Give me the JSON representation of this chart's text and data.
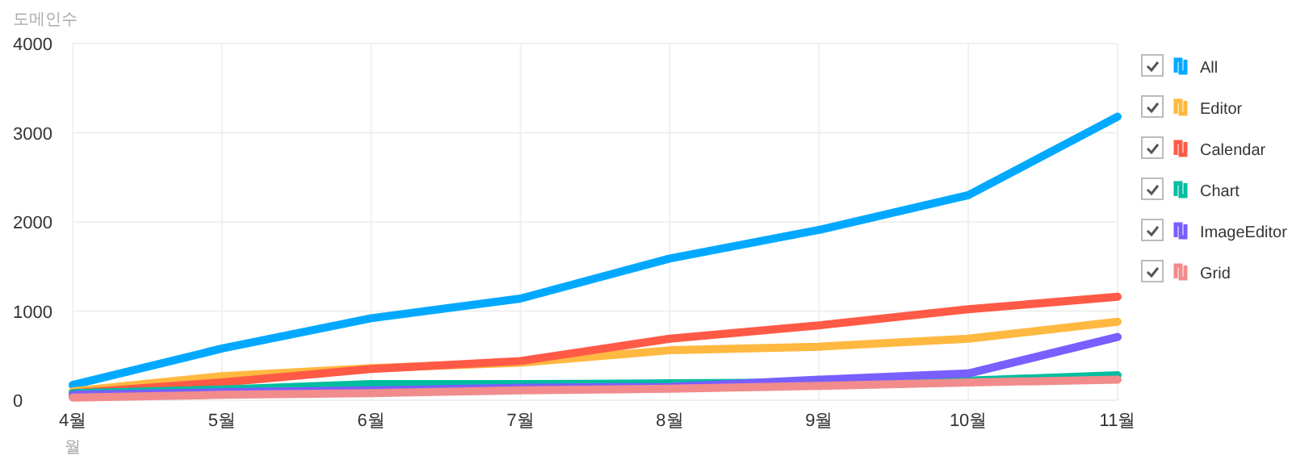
{
  "chart_data": {
    "type": "line",
    "ylabel": "도메인수",
    "xlabel": "월",
    "categories": [
      "4월",
      "5월",
      "6월",
      "7월",
      "8월",
      "9월",
      "10월",
      "11월"
    ],
    "series": [
      {
        "name": "All",
        "color": "#00a9ff",
        "values": [
          170,
          580,
          920,
          1140,
          1590,
          1910,
          2300,
          3180
        ]
      },
      {
        "name": "Editor",
        "color": "#ffb840",
        "values": [
          100,
          270,
          360,
          420,
          560,
          600,
          690,
          880
        ]
      },
      {
        "name": "Calendar",
        "color": "#ff5a46",
        "values": [
          80,
          200,
          350,
          440,
          690,
          840,
          1020,
          1160
        ]
      },
      {
        "name": "Chart",
        "color": "#00bd9f",
        "values": [
          80,
          120,
          180,
          180,
          190,
          200,
          220,
          280
        ]
      },
      {
        "name": "ImageEditor",
        "color": "#785fff",
        "values": [
          60,
          90,
          110,
          140,
          150,
          230,
          300,
          710
        ]
      },
      {
        "name": "Grid",
        "color": "#f28b8c",
        "values": [
          30,
          60,
          80,
          110,
          130,
          160,
          200,
          230
        ]
      }
    ],
    "ylim": [
      0,
      4000
    ],
    "yticks": [
      0,
      1000,
      2000,
      3000,
      4000
    ],
    "grid": true,
    "legend": "right",
    "marker": "none",
    "line_style": "solid"
  }
}
